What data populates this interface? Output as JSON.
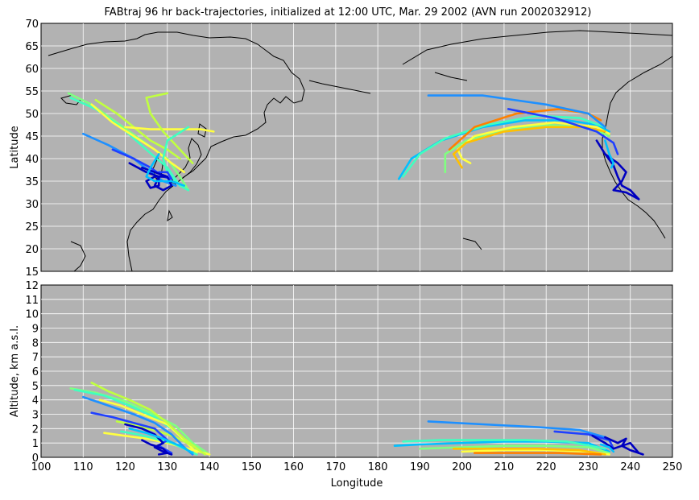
{
  "chart_data": {
    "title": "FABtraj 96 hr back-trajectories, initialized at 12:00 UTC, Mar. 29 2002 (AVN run 2002032912)",
    "panels": [
      {
        "type": "line",
        "ylabel": "Latitude",
        "xlim": [
          100,
          250
        ],
        "ylim": [
          15,
          70
        ],
        "yticks": [
          15,
          20,
          25,
          30,
          35,
          40,
          45,
          50,
          55,
          60,
          65,
          70
        ],
        "grid": true
      },
      {
        "type": "line",
        "ylabel": "Altitude, km a.s.l.",
        "xlabel": "Longitude",
        "xlim": [
          100,
          250
        ],
        "ylim": [
          0,
          12
        ],
        "yticks": [
          0,
          1,
          2,
          3,
          4,
          5,
          6,
          7,
          8,
          9,
          10,
          11,
          12
        ],
        "grid": true
      }
    ],
    "xticks": [
      100,
      110,
      120,
      130,
      140,
      150,
      160,
      170,
      180,
      190,
      200,
      210,
      220,
      230,
      240,
      250
    ],
    "series": [
      {
        "color": "#80ff80",
        "map": [
          [
            106.5,
            54.5
          ],
          [
            112,
            52
          ],
          [
            118,
            48
          ],
          [
            124,
            44
          ],
          [
            130,
            40
          ],
          [
            133,
            36
          ],
          [
            135,
            33
          ]
        ],
        "alt": [
          [
            107,
            4.8
          ],
          [
            113,
            4.5
          ],
          [
            120,
            3.9
          ],
          [
            126,
            3.1
          ],
          [
            132,
            2.2
          ],
          [
            136,
            1.0
          ],
          [
            140,
            0.2
          ]
        ]
      },
      {
        "color": "#40ffc0",
        "map": [
          [
            107,
            53.5
          ],
          [
            113,
            51
          ],
          [
            119,
            47
          ],
          [
            125,
            42
          ],
          [
            130,
            38
          ],
          [
            133,
            34
          ]
        ],
        "alt": [
          [
            108,
            4.7
          ],
          [
            115,
            4.3
          ],
          [
            121,
            3.6
          ],
          [
            127,
            2.8
          ],
          [
            132,
            1.8
          ],
          [
            136,
            0.8
          ],
          [
            139,
            0.2
          ]
        ]
      },
      {
        "color": "#ffff40",
        "map": [
          [
            112,
            52
          ],
          [
            117,
            48
          ],
          [
            122,
            45
          ],
          [
            127,
            42
          ],
          [
            131,
            39
          ],
          [
            134,
            37
          ]
        ],
        "alt": [
          [
            114,
            4.0
          ],
          [
            119,
            3.6
          ],
          [
            124,
            3.0
          ],
          [
            130,
            2.3
          ],
          [
            134,
            1.2
          ],
          [
            137,
            0.3
          ]
        ]
      },
      {
        "color": "#c0ff40",
        "map": [
          [
            113,
            53
          ],
          [
            118,
            50
          ],
          [
            122,
            47
          ],
          [
            126,
            44
          ],
          [
            130,
            42
          ],
          [
            133,
            40
          ]
        ],
        "alt": [
          [
            112,
            5.2
          ],
          [
            116,
            4.6
          ],
          [
            121,
            4.0
          ],
          [
            126,
            3.3
          ],
          [
            130,
            2.4
          ],
          [
            134,
            1.3
          ],
          [
            138,
            0.4
          ]
        ]
      },
      {
        "color": "#ffff40",
        "map": [
          [
            120,
            47
          ],
          [
            126,
            46.5
          ],
          [
            133,
            46.5
          ],
          [
            138,
            46.5
          ],
          [
            141,
            46
          ]
        ],
        "alt": [
          [
            115,
            1.7
          ],
          [
            120,
            1.5
          ],
          [
            125,
            1.3
          ],
          [
            130,
            1.0
          ],
          [
            135,
            0.6
          ],
          [
            140,
            0.2
          ]
        ]
      },
      {
        "color": "#c0ff40",
        "map": [
          [
            130,
            54.5
          ],
          [
            125,
            53.5
          ],
          [
            126,
            50
          ],
          [
            129,
            46
          ],
          [
            133,
            42
          ],
          [
            136,
            39
          ]
        ],
        "alt": [
          [
            118,
            2.5
          ],
          [
            123,
            2.2
          ],
          [
            128,
            1.8
          ],
          [
            132,
            1.4
          ],
          [
            136,
            0.8
          ],
          [
            139,
            0.2
          ]
        ]
      },
      {
        "color": "#40ffc0",
        "map": [
          [
            135,
            47
          ],
          [
            130,
            44
          ],
          [
            129,
            40
          ],
          [
            130,
            37
          ],
          [
            133,
            34
          ],
          [
            135,
            33
          ]
        ],
        "alt": [
          [
            119,
            1.8
          ],
          [
            123,
            1.6
          ],
          [
            127,
            1.3
          ],
          [
            131,
            1.0
          ],
          [
            134,
            0.6
          ],
          [
            137,
            0.2
          ]
        ]
      },
      {
        "color": "#1e90ff",
        "map": [
          [
            110,
            45.5
          ],
          [
            116,
            43
          ],
          [
            122,
            40
          ],
          [
            126,
            37
          ],
          [
            129,
            35
          ],
          [
            132,
            34
          ]
        ],
        "alt": [
          [
            110,
            4.2
          ],
          [
            116,
            3.6
          ],
          [
            122,
            3.0
          ],
          [
            127,
            2.4
          ],
          [
            131,
            1.6
          ],
          [
            134,
            0.7
          ],
          [
            136,
            0.2
          ]
        ]
      },
      {
        "color": "#2040ff",
        "map": [
          [
            117,
            42
          ],
          [
            122,
            40
          ],
          [
            126,
            38
          ],
          [
            129,
            36
          ],
          [
            131,
            35.5
          ],
          [
            130,
            37
          ],
          [
            128,
            37
          ]
        ],
        "alt": [
          [
            112,
            3.1
          ],
          [
            117,
            2.8
          ],
          [
            122,
            2.4
          ],
          [
            127,
            2.0
          ],
          [
            130,
            1.2
          ],
          [
            128,
            0.8
          ],
          [
            131,
            0.3
          ]
        ]
      },
      {
        "color": "#0000c0",
        "map": [
          [
            121,
            39
          ],
          [
            125,
            37
          ],
          [
            128,
            36
          ],
          [
            128,
            34
          ],
          [
            126,
            33.5
          ],
          [
            125,
            35
          ],
          [
            127,
            36
          ],
          [
            130,
            36
          ]
        ],
        "alt": [
          [
            120,
            2.3
          ],
          [
            124,
            2.0
          ],
          [
            127,
            1.6
          ],
          [
            129,
            1.0
          ],
          [
            127,
            0.7
          ],
          [
            129,
            0.4
          ],
          [
            131,
            0.2
          ]
        ]
      },
      {
        "color": "#0000c0",
        "map": [
          [
            124,
            38
          ],
          [
            127,
            37
          ],
          [
            130,
            36
          ],
          [
            131,
            34
          ],
          [
            129,
            33
          ],
          [
            127,
            34
          ],
          [
            128,
            36
          ]
        ],
        "alt": [
          [
            124,
            1.2
          ],
          [
            126,
            0.9
          ],
          [
            129,
            0.6
          ],
          [
            130,
            0.3
          ],
          [
            128,
            0.2
          ]
        ]
      },
      {
        "color": "#00c0ff",
        "map": [
          [
            128,
            41
          ],
          [
            126,
            38
          ],
          [
            125,
            36
          ],
          [
            127,
            35
          ],
          [
            131,
            35
          ],
          [
            134,
            34
          ]
        ],
        "alt": [
          [
            121,
            2.0
          ],
          [
            125,
            1.7
          ],
          [
            129,
            1.3
          ],
          [
            133,
            0.8
          ],
          [
            136,
            0.3
          ]
        ]
      },
      {
        "color": "#00c0ff",
        "map": [
          [
            185,
            35.5
          ],
          [
            188,
            40
          ],
          [
            195,
            44
          ],
          [
            205,
            47
          ],
          [
            215,
            48.5
          ],
          [
            225,
            48.5
          ],
          [
            232,
            47.5
          ],
          [
            235,
            46
          ]
        ],
        "alt": [
          [
            184,
            0.8
          ],
          [
            190,
            0.9
          ],
          [
            200,
            1.0
          ],
          [
            210,
            1.1
          ],
          [
            220,
            1.1
          ],
          [
            230,
            1.0
          ],
          [
            235,
            0.4
          ]
        ]
      },
      {
        "color": "#40ffc0",
        "map": [
          [
            186,
            36
          ],
          [
            190,
            41
          ],
          [
            196,
            44.5
          ],
          [
            206,
            47.5
          ],
          [
            218,
            49.5
          ],
          [
            228,
            49
          ],
          [
            234,
            47
          ]
        ],
        "alt": [
          [
            186,
            1.1
          ],
          [
            195,
            1.2
          ],
          [
            205,
            1.2
          ],
          [
            215,
            1.2
          ],
          [
            225,
            1.1
          ],
          [
            234,
            0.6
          ]
        ]
      },
      {
        "color": "#80ff80",
        "map": [
          [
            196,
            37
          ],
          [
            196,
            41
          ],
          [
            201,
            44
          ],
          [
            210,
            46.5
          ],
          [
            220,
            47.5
          ],
          [
            230,
            47
          ],
          [
            235,
            45
          ]
        ],
        "alt": [
          [
            190,
            0.6
          ],
          [
            200,
            0.7
          ],
          [
            210,
            0.8
          ],
          [
            220,
            0.8
          ],
          [
            230,
            0.7
          ],
          [
            235,
            0.3
          ]
        ]
      },
      {
        "color": "#ffff40",
        "map": [
          [
            202,
            39
          ],
          [
            200,
            40
          ],
          [
            199,
            42
          ],
          [
            203,
            45
          ],
          [
            212,
            47
          ],
          [
            222,
            48
          ],
          [
            232,
            47
          ],
          [
            235,
            45.5
          ]
        ],
        "alt": [
          [
            200,
            0.4
          ],
          [
            210,
            0.5
          ],
          [
            220,
            0.5
          ],
          [
            230,
            0.4
          ],
          [
            235,
            0.2
          ]
        ]
      },
      {
        "color": "#ffc000",
        "map": [
          [
            200,
            38
          ],
          [
            198,
            41
          ],
          [
            201,
            43.5
          ],
          [
            210,
            46
          ],
          [
            220,
            47
          ],
          [
            229,
            47
          ],
          [
            234,
            46
          ]
        ],
        "alt": [
          [
            198,
            0.6
          ],
          [
            208,
            0.6
          ],
          [
            218,
            0.6
          ],
          [
            228,
            0.5
          ],
          [
            234,
            0.2
          ]
        ]
      },
      {
        "color": "#ff8000",
        "map": [
          [
            197,
            42
          ],
          [
            203,
            47
          ],
          [
            213,
            50
          ],
          [
            223,
            51
          ],
          [
            230,
            50
          ],
          [
            233,
            48.5
          ]
        ],
        "alt": [
          [
            203,
            0.3
          ],
          [
            213,
            0.3
          ],
          [
            223,
            0.3
          ],
          [
            233,
            0.2
          ]
        ]
      },
      {
        "color": "#1e90ff",
        "map": [
          [
            192,
            54
          ],
          [
            205,
            54
          ],
          [
            220,
            52
          ],
          [
            230,
            50
          ],
          [
            234,
            47
          ]
        ],
        "alt": [
          [
            192,
            2.5
          ],
          [
            205,
            2.3
          ],
          [
            218,
            2.1
          ],
          [
            228,
            1.9
          ],
          [
            234,
            1.4
          ]
        ]
      },
      {
        "color": "#2040ff",
        "map": [
          [
            211,
            51
          ],
          [
            222,
            49
          ],
          [
            232,
            46
          ],
          [
            236,
            43.5
          ],
          [
            237,
            41
          ]
        ],
        "alt": [
          [
            222,
            1.8
          ],
          [
            230,
            1.6
          ],
          [
            235,
            1.2
          ],
          [
            236,
            0.6
          ]
        ]
      },
      {
        "color": "#0000c0",
        "map": [
          [
            232,
            44
          ],
          [
            234,
            41
          ],
          [
            236,
            38.5
          ],
          [
            237,
            36
          ],
          [
            238,
            34
          ],
          [
            240,
            33
          ],
          [
            242,
            31
          ]
        ],
        "alt": [
          [
            231,
            1.5
          ],
          [
            234,
            1.0
          ],
          [
            236,
            0.6
          ],
          [
            238,
            0.8
          ],
          [
            240,
            1.0
          ],
          [
            242,
            0.3
          ]
        ]
      },
      {
        "color": "#0000c0",
        "map": [
          [
            234,
            41
          ],
          [
            237,
            39
          ],
          [
            239,
            37
          ],
          [
            238,
            35
          ],
          [
            236,
            33
          ],
          [
            239,
            32.5
          ],
          [
            242,
            31
          ]
        ],
        "alt": [
          [
            234,
            1.4
          ],
          [
            237,
            1.0
          ],
          [
            239,
            1.3
          ],
          [
            238,
            0.8
          ],
          [
            240,
            0.5
          ],
          [
            243,
            0.2
          ]
        ]
      },
      {
        "color": "#00c0ff",
        "map": [
          [
            234,
            44
          ],
          [
            235,
            41
          ],
          [
            236,
            39
          ],
          [
            235.5,
            38
          ]
        ],
        "alt": [
          [
            233,
            0.9
          ],
          [
            235,
            0.7
          ],
          [
            236,
            0.4
          ]
        ]
      }
    ]
  }
}
